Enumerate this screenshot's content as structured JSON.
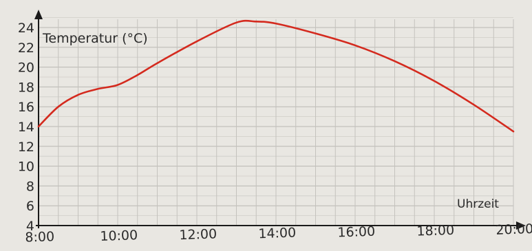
{
  "chart_data": {
    "type": "line",
    "title": "",
    "ylabel": "Temperatur (°C)",
    "xlabel": "Uhrzeit",
    "ylim": [
      4,
      24
    ],
    "xlim": [
      "8:00",
      "20:00"
    ],
    "y_ticks": [
      4,
      6,
      8,
      10,
      12,
      14,
      16,
      18,
      20,
      22,
      24
    ],
    "x_ticks": [
      "8:00",
      "10:00",
      "12:00",
      "14:00",
      "16:00",
      "18:00",
      "20:00"
    ],
    "grid": true,
    "series": [
      {
        "color": "#d42a1e",
        "x": [
          "8:00",
          "8:30",
          "9:00",
          "9:30",
          "10:00",
          "10:30",
          "11:00",
          "12:00",
          "13:00",
          "13:30",
          "14:00",
          "15:00",
          "16:00",
          "17:00",
          "18:00",
          "19:00",
          "20:00"
        ],
        "y": [
          14.0,
          16.0,
          17.2,
          17.8,
          18.2,
          19.2,
          20.4,
          22.6,
          24.5,
          24.6,
          24.4,
          23.4,
          22.2,
          20.6,
          18.6,
          16.2,
          13.5
        ]
      }
    ]
  }
}
